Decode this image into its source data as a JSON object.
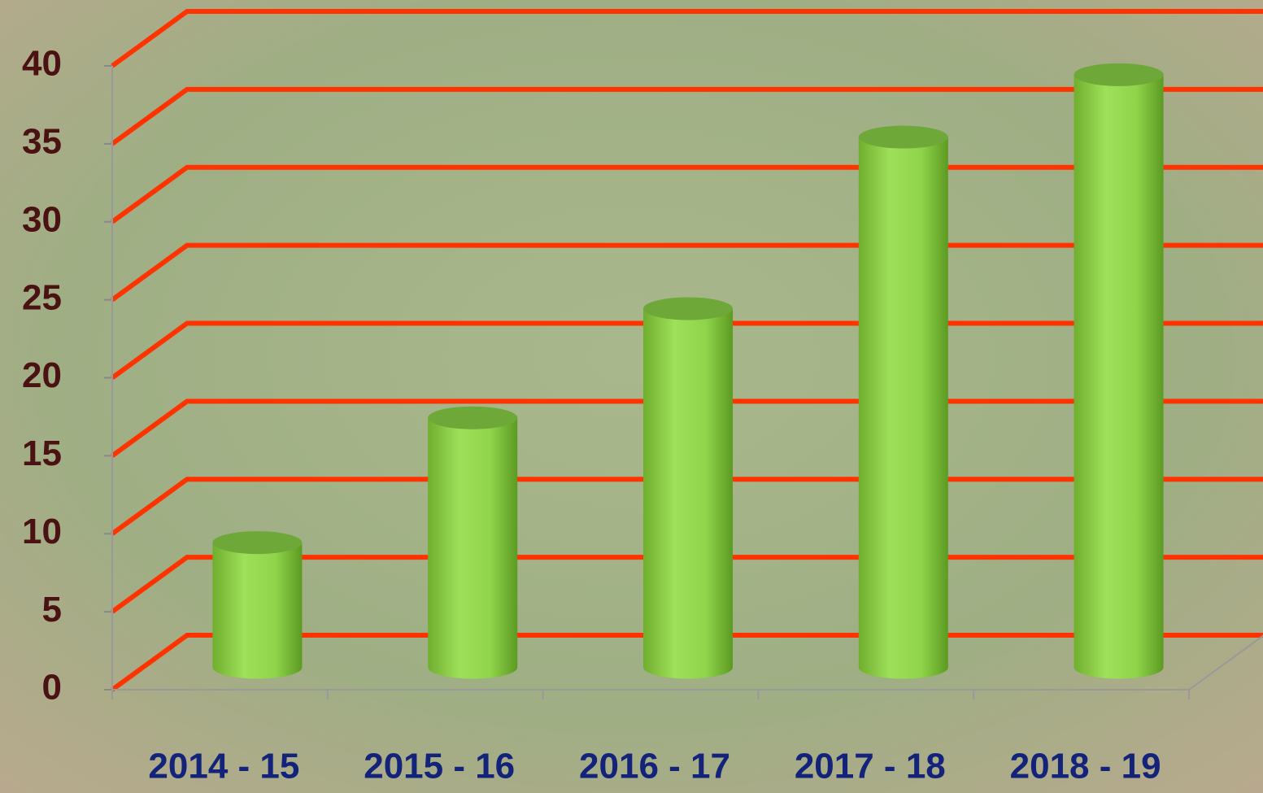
{
  "chart_data": {
    "type": "bar3d",
    "categories": [
      "2014 - 15",
      "2015 - 16",
      "2016 - 17",
      "2017 - 18",
      "2018 - 19"
    ],
    "values": [
      8,
      16,
      23,
      34,
      38
    ],
    "color": "#8fd44a",
    "grid_color": "#ff3300",
    "ylim": [
      0,
      40
    ],
    "yticks": [
      0,
      5,
      10,
      15,
      20,
      25,
      30,
      35,
      40
    ],
    "grid": true
  }
}
